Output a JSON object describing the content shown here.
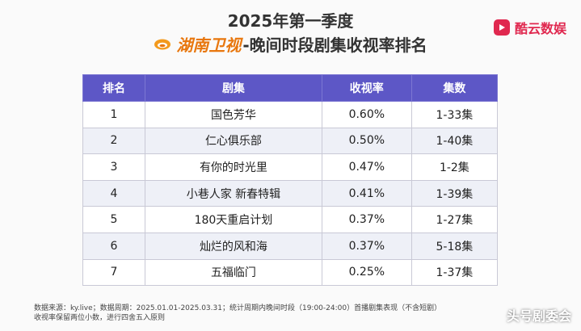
{
  "header": {
    "title_line1": "2025年第一季度",
    "channel_name": "湖南卫视",
    "title_line2_suffix": "-晚间时段剧集收视率排名",
    "brand_name": "酷云数娱"
  },
  "table": {
    "columns": [
      "排名",
      "剧集",
      "收视率",
      "集数"
    ],
    "rows": [
      {
        "rank": "1",
        "drama": "国色芳华",
        "rating": "0.60%",
        "episodes": "1-33集"
      },
      {
        "rank": "2",
        "drama": "仁心俱乐部",
        "rating": "0.50%",
        "episodes": "1-40集"
      },
      {
        "rank": "3",
        "drama": "有你的时光里",
        "rating": "0.47%",
        "episodes": "1-2集"
      },
      {
        "rank": "4",
        "drama": "小巷人家 新春特辑",
        "rating": "0.41%",
        "episodes": "1-39集"
      },
      {
        "rank": "5",
        "drama": "180天重启计划",
        "rating": "0.37%",
        "episodes": "1-27集"
      },
      {
        "rank": "6",
        "drama": "灿烂的风和海",
        "rating": "0.37%",
        "episodes": "5-18集"
      },
      {
        "rank": "7",
        "drama": "五福临门",
        "rating": "0.25%",
        "episodes": "1-37集"
      }
    ]
  },
  "footnote": {
    "line1": "数据来源：ky.live；数据周期：2025.01.01-2025.03.31；统计周期内晚间时段（19:00-24:00）首播剧集表现（不含短剧）",
    "line2": "收视率保留两位小数，进行四舍五入原则"
  },
  "watermark": "头号剧委会",
  "colors": {
    "header_bg": "#5d57c6",
    "channel_orange": "#e8770e",
    "brand_red": "#e0284f"
  }
}
